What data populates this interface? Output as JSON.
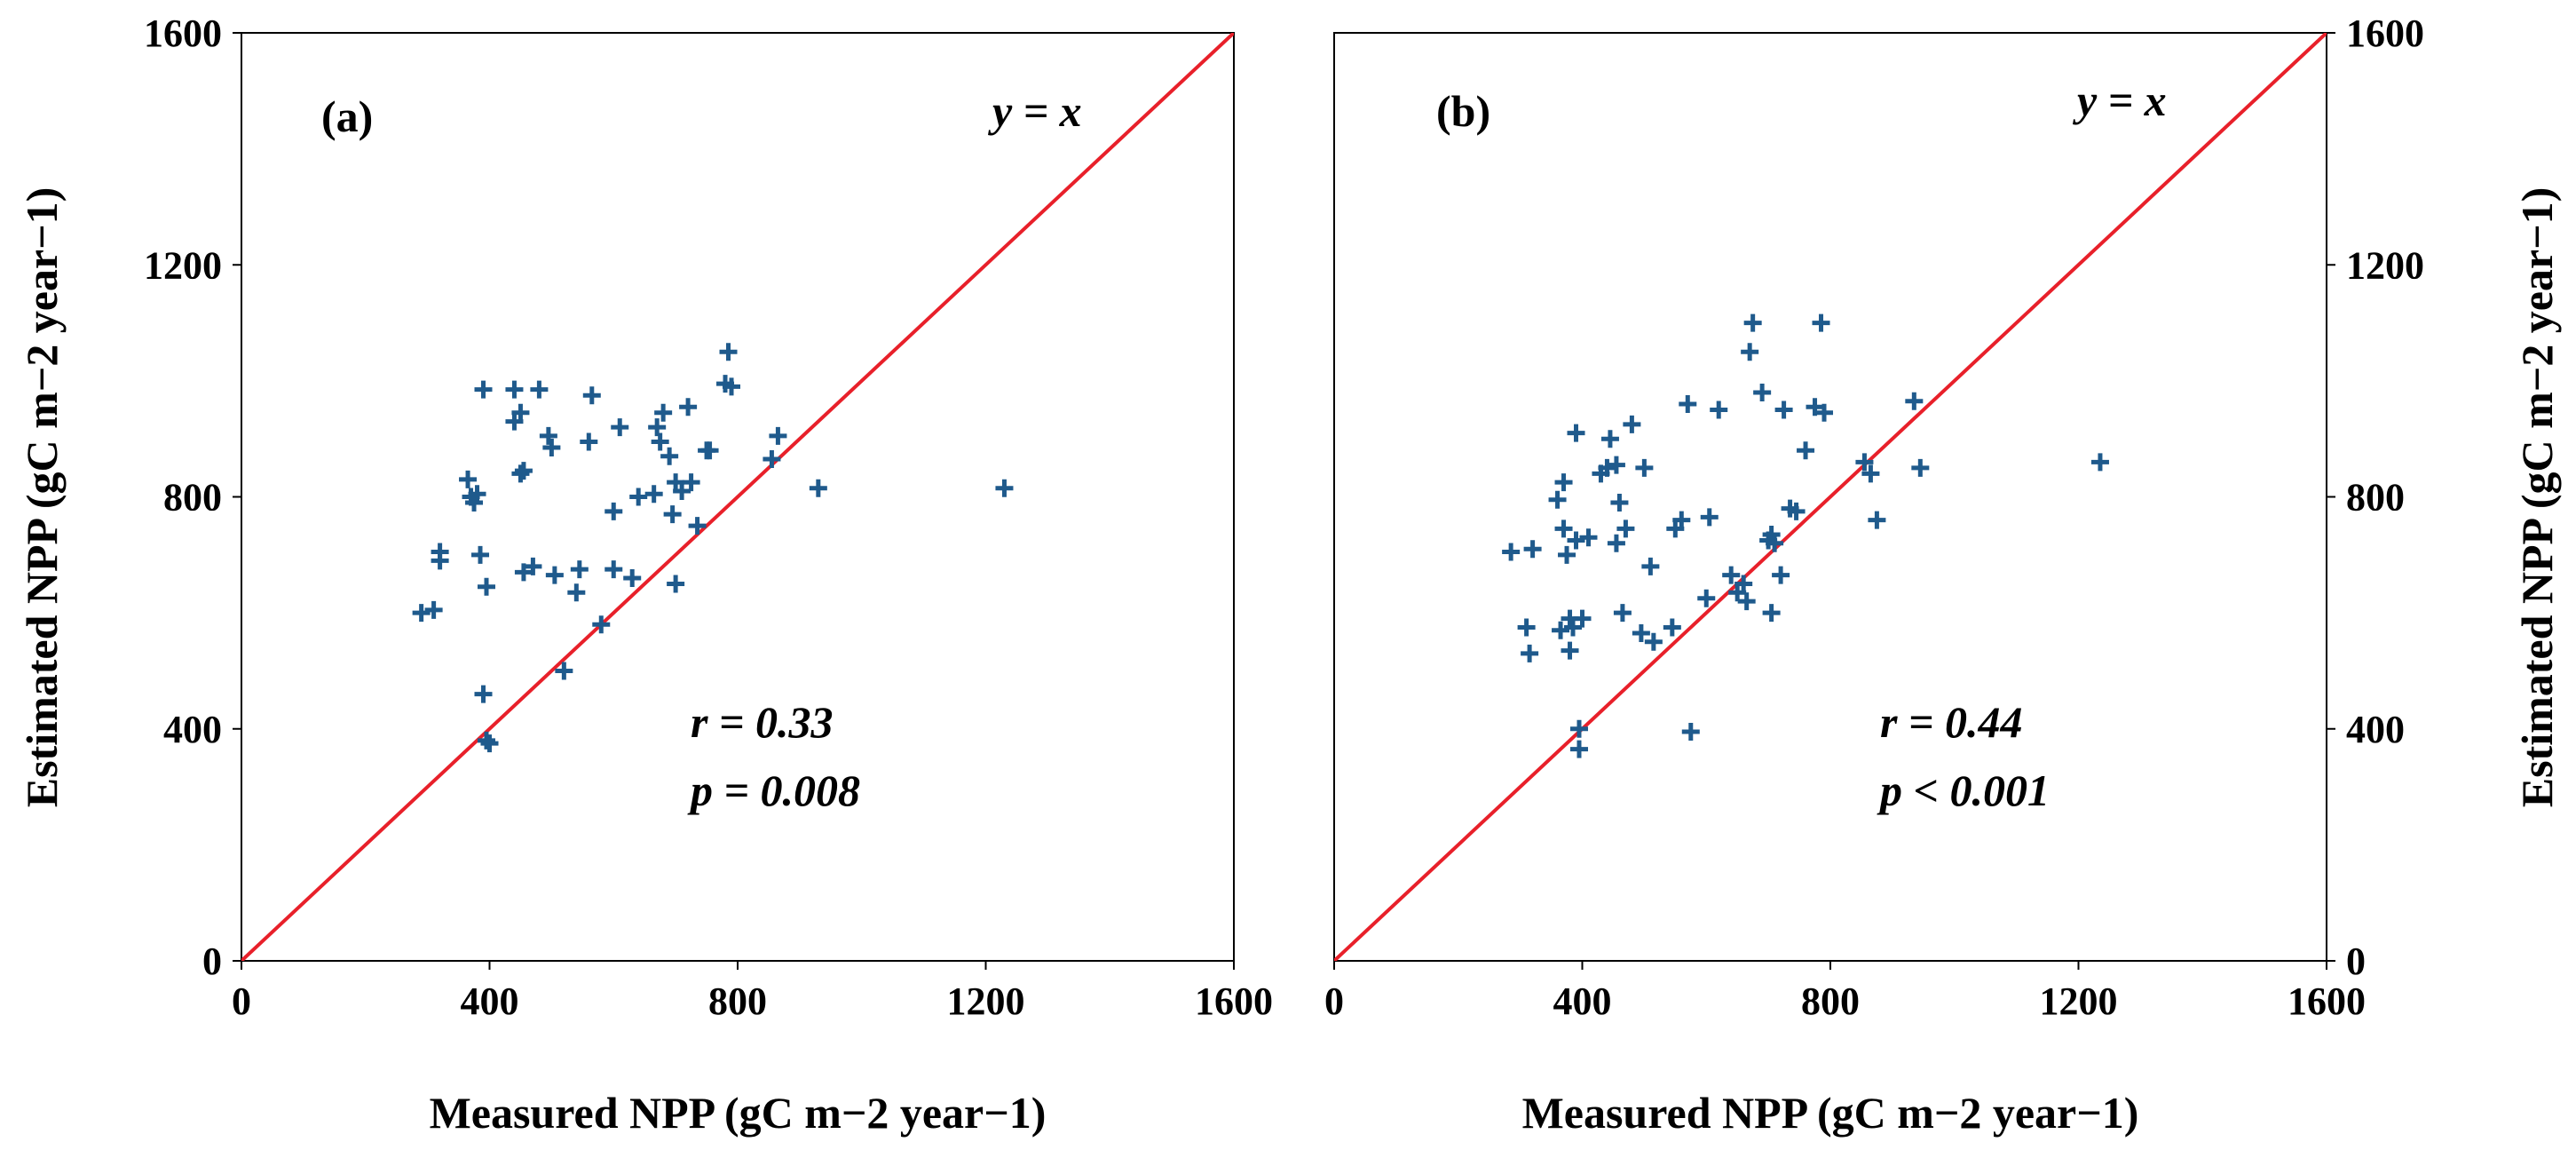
{
  "chart_data": [
    {
      "type": "scatter",
      "panel": "a",
      "panel_label": "(a)",
      "xlabel": "Measured NPP (gC m−2 year−1)",
      "ylabel": "Estimated NPP (gC m−2 year−1)",
      "xlim": [
        0,
        1600
      ],
      "ylim": [
        0,
        1600
      ],
      "x_ticks": [
        "0",
        "400",
        "800",
        "1200",
        "1600"
      ],
      "y_ticks": [
        "0",
        "400",
        "800",
        "1200",
        "1600"
      ],
      "line_label": "y = x",
      "r_text": "r = 0.33",
      "p_text": "p = 0.008",
      "y_axis_side": "left",
      "marker_color": "#1f5a8c",
      "line_color": "#e8202a",
      "points": [
        [
          290,
          600
        ],
        [
          310,
          605
        ],
        [
          320,
          690
        ],
        [
          320,
          705
        ],
        [
          365,
          830
        ],
        [
          370,
          800
        ],
        [
          375,
          790
        ],
        [
          380,
          805
        ],
        [
          385,
          700
        ],
        [
          390,
          985
        ],
        [
          390,
          460
        ],
        [
          395,
          645
        ],
        [
          395,
          380
        ],
        [
          400,
          375
        ],
        [
          440,
          985
        ],
        [
          440,
          930
        ],
        [
          450,
          945
        ],
        [
          450,
          840
        ],
        [
          455,
          845
        ],
        [
          455,
          670
        ],
        [
          470,
          680
        ],
        [
          480,
          985
        ],
        [
          495,
          905
        ],
        [
          500,
          885
        ],
        [
          505,
          665
        ],
        [
          520,
          500
        ],
        [
          540,
          635
        ],
        [
          545,
          675
        ],
        [
          560,
          895
        ],
        [
          565,
          975
        ],
        [
          580,
          580
        ],
        [
          600,
          675
        ],
        [
          600,
          775
        ],
        [
          610,
          920
        ],
        [
          630,
          660
        ],
        [
          640,
          800
        ],
        [
          665,
          805
        ],
        [
          670,
          920
        ],
        [
          675,
          895
        ],
        [
          680,
          945
        ],
        [
          690,
          870
        ],
        [
          695,
          770
        ],
        [
          700,
          825
        ],
        [
          700,
          650
        ],
        [
          710,
          810
        ],
        [
          720,
          955
        ],
        [
          725,
          825
        ],
        [
          735,
          750
        ],
        [
          750,
          880
        ],
        [
          755,
          880
        ],
        [
          780,
          995
        ],
        [
          785,
          1050
        ],
        [
          790,
          990
        ],
        [
          855,
          865
        ],
        [
          865,
          905
        ],
        [
          930,
          815
        ],
        [
          1230,
          815
        ]
      ]
    },
    {
      "type": "scatter",
      "panel": "b",
      "panel_label": "(b)",
      "xlabel": "Measured NPP (gC m−2 year−1)",
      "ylabel": "Estimated NPP (gC m−2 year−1)",
      "xlim": [
        0,
        1600
      ],
      "ylim": [
        0,
        1600
      ],
      "x_ticks": [
        "0",
        "400",
        "800",
        "1200",
        "1600"
      ],
      "y_ticks": [
        "0",
        "400",
        "800",
        "1200",
        "1600"
      ],
      "line_label": "y = x",
      "r_text": "r = 0.44",
      "p_text": "p < 0.001",
      "y_axis_side": "right",
      "marker_color": "#1f5a8c",
      "line_color": "#e8202a",
      "points": [
        [
          285,
          705
        ],
        [
          310,
          575
        ],
        [
          315,
          530
        ],
        [
          320,
          710
        ],
        [
          360,
          795
        ],
        [
          365,
          570
        ],
        [
          370,
          825
        ],
        [
          370,
          745
        ],
        [
          375,
          700
        ],
        [
          380,
          590
        ],
        [
          380,
          535
        ],
        [
          385,
          575
        ],
        [
          390,
          725
        ],
        [
          390,
          910
        ],
        [
          395,
          365
        ],
        [
          395,
          400
        ],
        [
          400,
          590
        ],
        [
          410,
          730
        ],
        [
          430,
          840
        ],
        [
          440,
          850
        ],
        [
          445,
          900
        ],
        [
          455,
          855
        ],
        [
          455,
          720
        ],
        [
          460,
          790
        ],
        [
          465,
          600
        ],
        [
          470,
          745
        ],
        [
          480,
          925
        ],
        [
          495,
          565
        ],
        [
          500,
          850
        ],
        [
          510,
          680
        ],
        [
          515,
          550
        ],
        [
          545,
          575
        ],
        [
          550,
          745
        ],
        [
          560,
          760
        ],
        [
          570,
          960
        ],
        [
          575,
          395
        ],
        [
          600,
          625
        ],
        [
          605,
          765
        ],
        [
          620,
          950
        ],
        [
          640,
          665
        ],
        [
          650,
          635
        ],
        [
          660,
          650
        ],
        [
          665,
          620
        ],
        [
          670,
          1050
        ],
        [
          675,
          1100
        ],
        [
          690,
          980
        ],
        [
          700,
          725
        ],
        [
          705,
          600
        ],
        [
          705,
          735
        ],
        [
          710,
          720
        ],
        [
          720,
          665
        ],
        [
          725,
          950
        ],
        [
          735,
          780
        ],
        [
          745,
          775
        ],
        [
          760,
          880
        ],
        [
          775,
          955
        ],
        [
          785,
          1100
        ],
        [
          790,
          945
        ],
        [
          855,
          860
        ],
        [
          865,
          840
        ],
        [
          875,
          760
        ],
        [
          935,
          965
        ],
        [
          945,
          850
        ],
        [
          1235,
          860
        ]
      ]
    }
  ]
}
